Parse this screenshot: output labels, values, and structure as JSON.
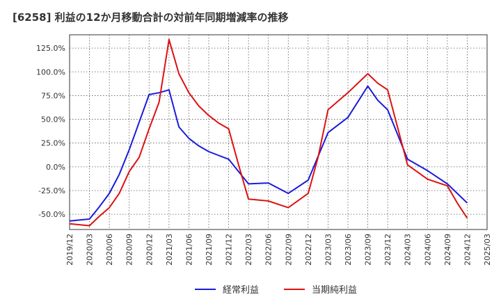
{
  "chart_data": {
    "type": "line",
    "title": "[6258]  利益の12か月移動合計の対前年同期増減率の推移",
    "x_tick_labels": [
      "2019/12",
      "2020/03",
      "2020/06",
      "2020/09",
      "2020/12",
      "2021/03",
      "2021/06",
      "2021/09",
      "2021/12",
      "2022/03",
      "2022/06",
      "2022/09",
      "2022/12",
      "2023/03",
      "2023/06",
      "2023/09",
      "2023/12",
      "2024/03",
      "2024/06",
      "2024/09",
      "2024/12",
      "2025/03"
    ],
    "y_tick_labels": [
      "125.0%",
      "100.0%",
      "75.0%",
      "50.0%",
      "25.0%",
      "0.0%",
      "-25.0%",
      "-50.0%"
    ],
    "y_ticks": [
      125,
      100,
      75,
      50,
      25,
      0,
      -25,
      -50
    ],
    "ylim": [
      -66,
      139
    ],
    "xlim": [
      0,
      21
    ],
    "grid": true,
    "legend_position": "bottom-center",
    "series": [
      {
        "name": "経常利益",
        "color": "#1a1adb",
        "x": [
          0,
          1,
          1.5,
          2,
          2.5,
          3,
          3.5,
          4,
          4.5,
          5,
          5.5,
          6,
          6.5,
          7,
          7.5,
          8,
          8.5,
          9,
          10,
          11,
          12,
          13,
          14,
          15,
          15.5,
          16,
          17,
          18,
          19,
          20
        ],
        "values": [
          -57,
          -55,
          -42,
          -28,
          -8,
          18,
          47,
          76,
          78,
          81,
          42,
          30,
          22,
          16,
          12,
          8,
          -5,
          -18,
          -17,
          -28,
          -14,
          36,
          52,
          85,
          70,
          60,
          8,
          -4,
          -18,
          -38
        ]
      },
      {
        "name": "当期純利益",
        "color": "#dd1111",
        "x": [
          0,
          1,
          1.5,
          2,
          2.5,
          3,
          3.5,
          4,
          4.5,
          5,
          5.5,
          6,
          6.5,
          7,
          7.5,
          8,
          8.5,
          9,
          10,
          11,
          12,
          12.5,
          13,
          14,
          15,
          15.5,
          16,
          17,
          18,
          19,
          19.5,
          20
        ],
        "values": [
          -60,
          -62,
          -52,
          -43,
          -28,
          -5,
          10,
          40,
          68,
          134,
          98,
          78,
          64,
          54,
          46,
          40,
          2,
          -34,
          -36,
          -43,
          -28,
          10,
          60,
          78,
          98,
          88,
          81,
          2,
          -13,
          -20,
          -38,
          -54
        ]
      }
    ]
  }
}
